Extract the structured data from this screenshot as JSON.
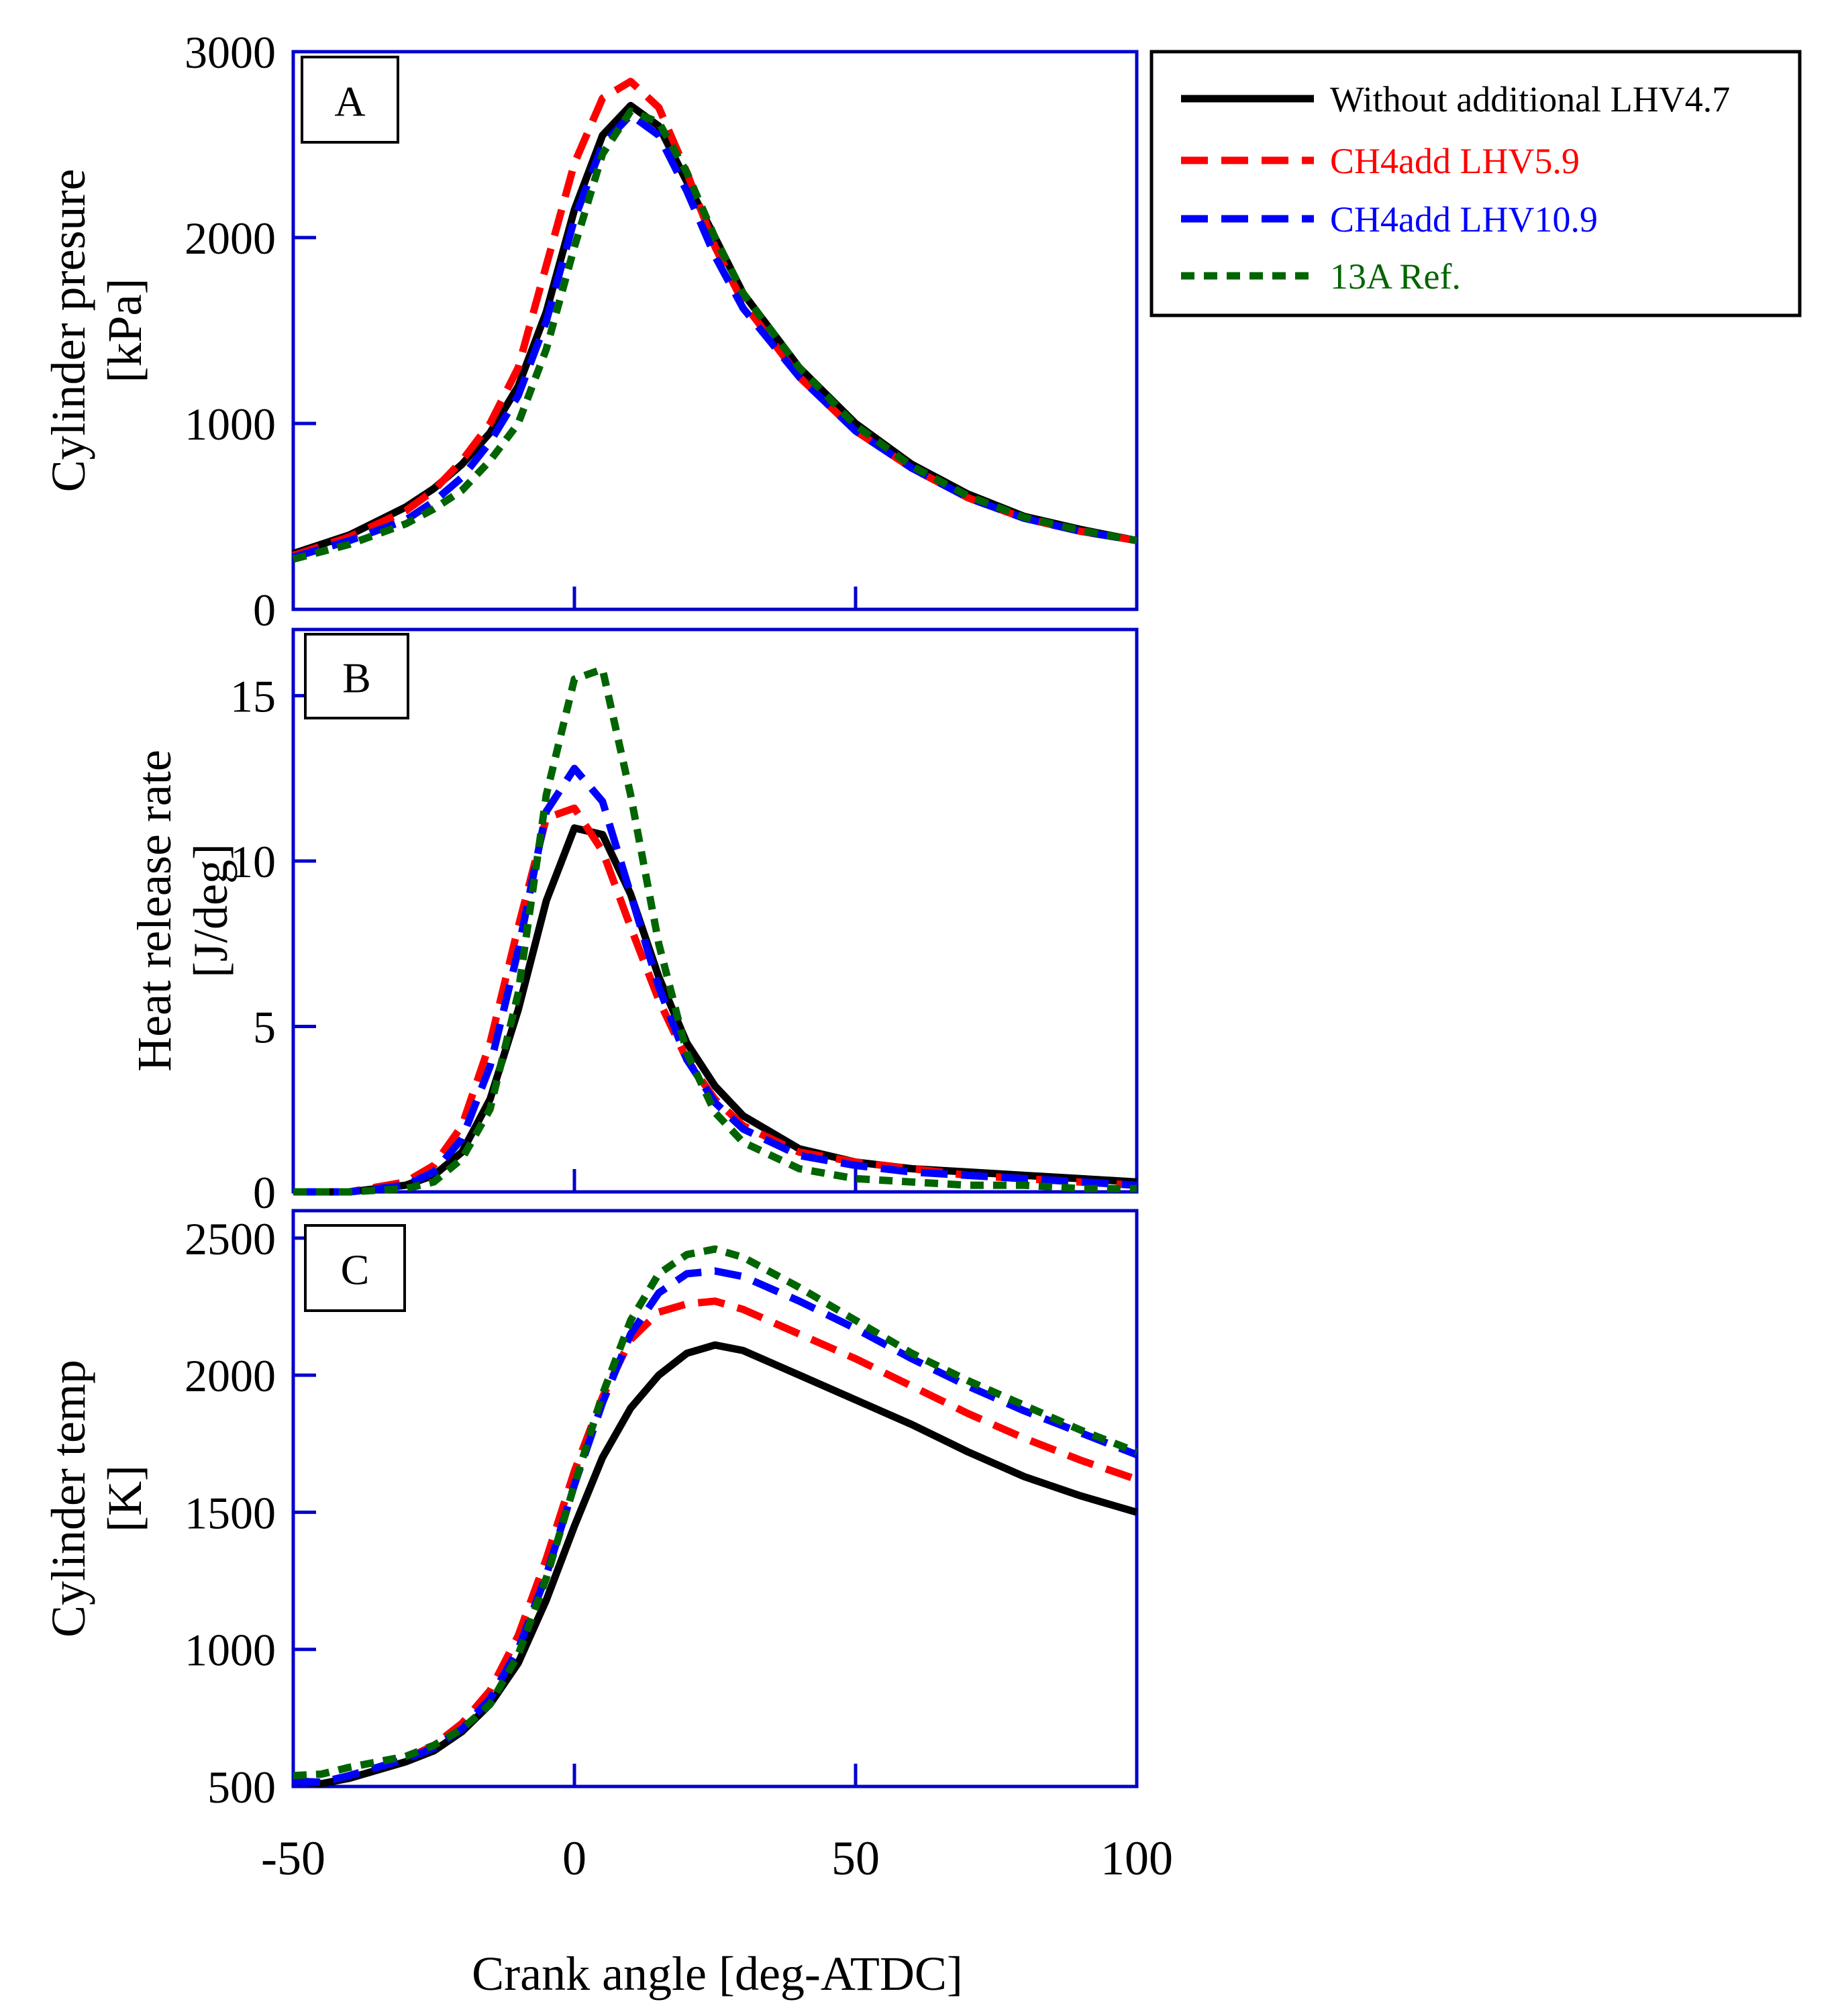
{
  "figure": {
    "xlabel": "Crank angle [deg-ATDC]",
    "x_tick_labels": [
      "-50",
      "0",
      "50",
      "100"
    ]
  },
  "legend": {
    "entries": [
      {
        "label": "Without additional LHV4.7",
        "color": "#000000",
        "dash": "solid"
      },
      {
        "label": "CH4add LHV5.9",
        "color": "#ff0000",
        "dash": "long-dash"
      },
      {
        "label": "CH4add LHV10.9",
        "color": "#0000ff",
        "dash": "long-dash"
      },
      {
        "label": "13A Ref.",
        "color": "#006400",
        "dash": "short-dash"
      }
    ]
  },
  "chart_data": [
    {
      "type": "line",
      "panel_label": "A",
      "ylabel_lines": [
        "Cylinder presure",
        "[kPa]"
      ],
      "xlim": [
        -50,
        100
      ],
      "ylim": [
        0,
        3000
      ],
      "x_ticks": [
        -50,
        0,
        50,
        100
      ],
      "y_ticks": [
        0,
        1000,
        2000,
        3000
      ],
      "y_tick_labels": [
        "0",
        "1000",
        "2000",
        "3000"
      ],
      "series": [
        {
          "name": "Without additional LHV4.7",
          "color": "#000000",
          "dash": "solid",
          "x": [
            -50,
            -40,
            -30,
            -25,
            -20,
            -15,
            -10,
            -5,
            0,
            5,
            10,
            15,
            20,
            25,
            30,
            40,
            50,
            60,
            70,
            80,
            90,
            100
          ],
          "y": [
            300,
            400,
            550,
            650,
            780,
            950,
            1200,
            1600,
            2150,
            2550,
            2710,
            2600,
            2300,
            2000,
            1700,
            1300,
            1000,
            780,
            620,
            500,
            430,
            370
          ]
        },
        {
          "name": "CH4add LHV5.9",
          "color": "#ff0000",
          "dash": "long-dash",
          "x": [
            -50,
            -40,
            -30,
            -25,
            -20,
            -15,
            -10,
            -5,
            0,
            5,
            10,
            15,
            20,
            25,
            30,
            40,
            50,
            60,
            70,
            80,
            90,
            100
          ],
          "y": [
            290,
            390,
            530,
            640,
            800,
            1000,
            1300,
            1850,
            2400,
            2750,
            2840,
            2700,
            2350,
            1950,
            1650,
            1250,
            960,
            760,
            600,
            490,
            420,
            370
          ]
        },
        {
          "name": "CH4add LHV10.9",
          "color": "#0000ff",
          "dash": "long-dash",
          "x": [
            -50,
            -40,
            -30,
            -25,
            -20,
            -15,
            -10,
            -5,
            0,
            5,
            10,
            15,
            20,
            25,
            30,
            40,
            50,
            60,
            70,
            80,
            90,
            100
          ],
          "y": [
            280,
            370,
            480,
            580,
            710,
            900,
            1150,
            1550,
            2100,
            2500,
            2660,
            2550,
            2250,
            1900,
            1620,
            1250,
            960,
            760,
            600,
            490,
            420,
            370
          ]
        },
        {
          "name": "13A Ref.",
          "color": "#006400",
          "dash": "short-dash",
          "x": [
            -50,
            -40,
            -30,
            -25,
            -20,
            -15,
            -10,
            -5,
            0,
            5,
            10,
            15,
            20,
            25,
            30,
            40,
            50,
            60,
            70,
            80,
            90,
            100
          ],
          "y": [
            270,
            350,
            460,
            540,
            640,
            800,
            1000,
            1400,
            1950,
            2450,
            2680,
            2620,
            2350,
            2000,
            1700,
            1300,
            990,
            770,
            610,
            495,
            425,
            370
          ]
        }
      ]
    },
    {
      "type": "line",
      "panel_label": "B",
      "ylabel_lines": [
        "Heat release rate",
        "[J/deg]"
      ],
      "xlim": [
        -50,
        100
      ],
      "ylim": [
        0,
        17
      ],
      "x_ticks": [
        -50,
        0,
        50,
        100
      ],
      "y_ticks": [
        0,
        5,
        10,
        15
      ],
      "y_tick_labels": [
        "0",
        "5",
        "10",
        "15"
      ],
      "series": [
        {
          "name": "Without additional LHV4.7",
          "color": "#000000",
          "dash": "solid",
          "x": [
            -50,
            -40,
            -30,
            -25,
            -20,
            -15,
            -10,
            -5,
            0,
            5,
            10,
            15,
            20,
            25,
            30,
            40,
            50,
            60,
            70,
            80,
            90,
            100
          ],
          "y": [
            0,
            0,
            0.2,
            0.5,
            1.2,
            2.8,
            5.5,
            8.8,
            11.0,
            10.8,
            9.0,
            6.5,
            4.5,
            3.2,
            2.3,
            1.3,
            0.9,
            0.7,
            0.6,
            0.5,
            0.4,
            0.3
          ]
        },
        {
          "name": "CH4add LHV5.9",
          "color": "#ff0000",
          "dash": "long-dash",
          "x": [
            -50,
            -40,
            -30,
            -25,
            -20,
            -15,
            -10,
            -5,
            0,
            5,
            10,
            15,
            20,
            25,
            30,
            40,
            50,
            60,
            70,
            80,
            90,
            100
          ],
          "y": [
            0,
            0,
            0.3,
            0.8,
            2.0,
            4.5,
            8.0,
            11.3,
            11.6,
            10.3,
            8.0,
            5.8,
            4.0,
            2.8,
            2.0,
            1.2,
            0.9,
            0.7,
            0.5,
            0.4,
            0.3,
            0.2
          ]
        },
        {
          "name": "CH4add LHV10.9",
          "color": "#0000ff",
          "dash": "long-dash",
          "x": [
            -50,
            -40,
            -30,
            -25,
            -20,
            -15,
            -10,
            -5,
            0,
            5,
            10,
            15,
            20,
            25,
            30,
            40,
            50,
            60,
            70,
            80,
            90,
            100
          ],
          "y": [
            0,
            0,
            0.2,
            0.6,
            1.6,
            3.8,
            7.3,
            11.5,
            12.8,
            11.8,
            9.0,
            6.2,
            4.0,
            2.7,
            1.9,
            1.1,
            0.8,
            0.6,
            0.5,
            0.4,
            0.3,
            0.2
          ]
        },
        {
          "name": "13A Ref.",
          "color": "#006400",
          "dash": "short-dash",
          "x": [
            -50,
            -40,
            -30,
            -25,
            -20,
            -15,
            -10,
            -5,
            0,
            5,
            10,
            15,
            20,
            25,
            30,
            40,
            50,
            60,
            70,
            80,
            90,
            100
          ],
          "y": [
            0,
            0,
            0.1,
            0.3,
            1.0,
            2.5,
            6.0,
            12.0,
            15.5,
            15.8,
            12.0,
            7.5,
            4.2,
            2.4,
            1.5,
            0.7,
            0.4,
            0.3,
            0.2,
            0.2,
            0.1,
            0.1
          ]
        }
      ]
    },
    {
      "type": "line",
      "panel_label": "C",
      "ylabel_lines": [
        "Cylinder temp",
        "[K]"
      ],
      "xlim": [
        -50,
        100
      ],
      "ylim": [
        500,
        2600
      ],
      "x_ticks": [
        -50,
        0,
        50,
        100
      ],
      "y_ticks": [
        500,
        1000,
        1500,
        2000,
        2500
      ],
      "y_tick_labels": [
        "500",
        "1000",
        "1500",
        "2000",
        "2500"
      ],
      "series": [
        {
          "name": "Without additional LHV4.7",
          "color": "#000000",
          "dash": "solid",
          "x": [
            -50,
            -45,
            -40,
            -30,
            -25,
            -20,
            -15,
            -10,
            -5,
            0,
            5,
            10,
            15,
            20,
            25,
            30,
            40,
            50,
            60,
            70,
            80,
            90,
            100
          ],
          "y": [
            520,
            510,
            530,
            590,
            630,
            700,
            800,
            950,
            1180,
            1450,
            1700,
            1880,
            2000,
            2080,
            2110,
            2090,
            2000,
            1910,
            1820,
            1720,
            1630,
            1560,
            1500
          ]
        },
        {
          "name": "CH4add LHV5.9",
          "color": "#ff0000",
          "dash": "long-dash",
          "x": [
            -50,
            -45,
            -40,
            -30,
            -25,
            -20,
            -15,
            -10,
            -5,
            0,
            5,
            10,
            15,
            20,
            25,
            30,
            40,
            50,
            60,
            70,
            80,
            90,
            100
          ],
          "y": [
            520,
            515,
            540,
            600,
            650,
            730,
            850,
            1050,
            1330,
            1650,
            1920,
            2130,
            2230,
            2260,
            2270,
            2240,
            2150,
            2060,
            1960,
            1860,
            1770,
            1690,
            1620
          ]
        },
        {
          "name": "CH4add LHV10.9",
          "color": "#0000ff",
          "dash": "long-dash",
          "x": [
            -50,
            -45,
            -40,
            -30,
            -25,
            -20,
            -15,
            -10,
            -5,
            0,
            5,
            10,
            15,
            20,
            25,
            30,
            40,
            50,
            60,
            70,
            80,
            90,
            100
          ],
          "y": [
            520,
            515,
            540,
            600,
            640,
            710,
            820,
            1000,
            1270,
            1600,
            1900,
            2150,
            2300,
            2370,
            2380,
            2360,
            2270,
            2170,
            2060,
            1960,
            1870,
            1790,
            1710
          ]
        },
        {
          "name": "13A Ref.",
          "color": "#006400",
          "dash": "short-dash",
          "x": [
            -50,
            -45,
            -40,
            -30,
            -25,
            -20,
            -15,
            -10,
            -5,
            0,
            5,
            10,
            15,
            20,
            25,
            30,
            40,
            50,
            60,
            70,
            80,
            90,
            100
          ],
          "y": [
            540,
            545,
            570,
            610,
            650,
            710,
            800,
            980,
            1260,
            1600,
            1930,
            2200,
            2370,
            2440,
            2460,
            2430,
            2320,
            2200,
            2080,
            1980,
            1890,
            1800,
            1720
          ]
        }
      ]
    }
  ]
}
